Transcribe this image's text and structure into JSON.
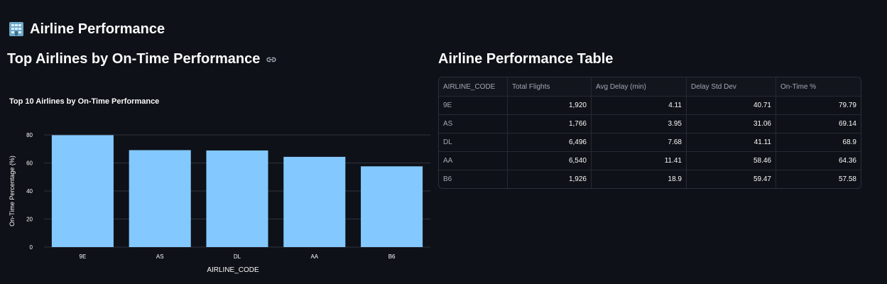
{
  "header": {
    "title": "Airline Performance",
    "icon": "building-icon"
  },
  "left_section": {
    "title": "Top Airlines by On-Time Performance",
    "link_icon": "link-icon"
  },
  "right_section": {
    "title": "Airline Performance Table"
  },
  "table": {
    "columns": [
      "AIRLINE_CODE",
      "Total Flights",
      "Avg Delay (min)",
      "Delay Std Dev",
      "On-Time %"
    ],
    "rows": [
      [
        "9E",
        "1,920",
        "4.11",
        "40.71",
        "79.79"
      ],
      [
        "AS",
        "1,766",
        "3.95",
        "31.06",
        "69.14"
      ],
      [
        "DL",
        "6,496",
        "7.68",
        "41.11",
        "68.9"
      ],
      [
        "AA",
        "6,540",
        "11.41",
        "58.46",
        "64.36"
      ],
      [
        "B6",
        "1,926",
        "18.9",
        "59.47",
        "57.58"
      ]
    ]
  },
  "chart_data": {
    "type": "bar",
    "title": "Top 10 Airlines by On-Time Performance",
    "xlabel": "AIRLINE_CODE",
    "ylabel": "On-Time Percentage (%)",
    "categories": [
      "9E",
      "AS",
      "DL",
      "AA",
      "B6"
    ],
    "values": [
      79.79,
      69.14,
      68.9,
      64.36,
      57.58
    ],
    "yticks": [
      0,
      20,
      40,
      60,
      80
    ],
    "ylim": [
      0,
      80
    ],
    "grid": true,
    "bar_color": "#83c9ff"
  },
  "colors": {
    "background": "#0e1117",
    "text": "#fafafa",
    "muted": "#a3a8b4",
    "bar": "#83c9ff"
  }
}
